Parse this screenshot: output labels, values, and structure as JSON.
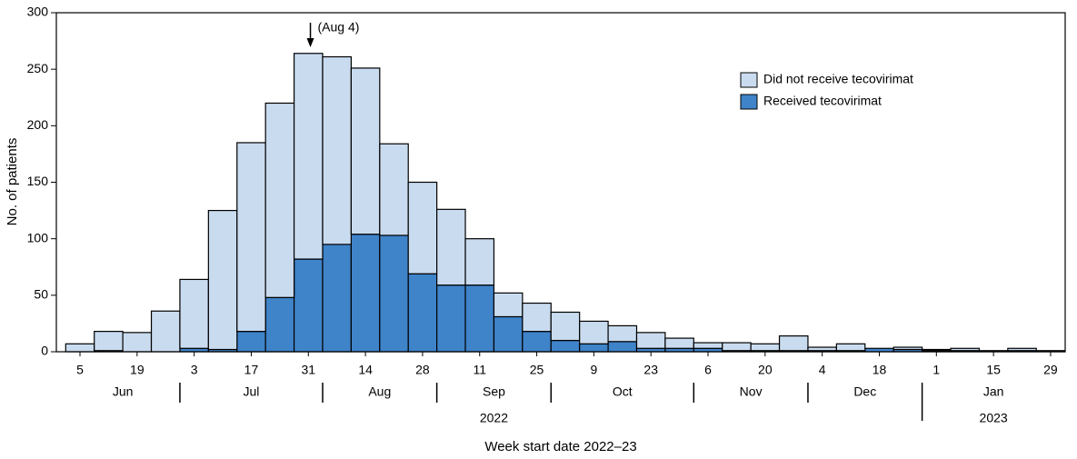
{
  "chart_data": {
    "type": "bar",
    "stacked": true,
    "y_label": "No. of patients",
    "x_label": "Week start date 2022–23",
    "annotation": "(Aug 4)",
    "categories": [
      "5",
      null,
      "19",
      null,
      "3",
      null,
      "17",
      null,
      "31",
      null,
      "14",
      null,
      "28",
      null,
      "11",
      null,
      "25",
      null,
      "9",
      null,
      "23",
      null,
      "6",
      null,
      "20",
      null,
      "4",
      null,
      "18",
      null,
      "1",
      null,
      "15",
      null,
      "29"
    ],
    "months": [
      "Jun",
      "Jul",
      "Aug",
      "Sep",
      "Oct",
      "Nov",
      "Dec",
      "Jan"
    ],
    "years": [
      "2022",
      "2023"
    ],
    "series": [
      {
        "name": "Received tecovirimat",
        "color": "#3f83c9",
        "values": [
          0,
          1,
          0,
          0,
          3,
          2,
          18,
          48,
          82,
          95,
          104,
          103,
          69,
          59,
          59,
          31,
          18,
          10,
          7,
          9,
          3,
          3,
          3,
          1,
          1,
          1,
          1,
          1,
          3,
          2,
          1,
          1,
          1,
          1,
          1
        ]
      },
      {
        "name": "Did not receive tecovirimat",
        "color": "#c9dbef",
        "values": [
          7,
          17,
          17,
          36,
          61,
          123,
          167,
          172,
          182,
          166,
          147,
          81,
          81,
          67,
          41,
          21,
          25,
          25,
          20,
          14,
          14,
          9,
          5,
          7,
          6,
          13,
          3,
          6,
          0,
          2,
          1,
          2,
          0,
          2,
          0
        ]
      }
    ],
    "ylim": [
      0,
      300
    ],
    "yticks": [
      0,
      50,
      100,
      150,
      200,
      250,
      300
    ]
  }
}
